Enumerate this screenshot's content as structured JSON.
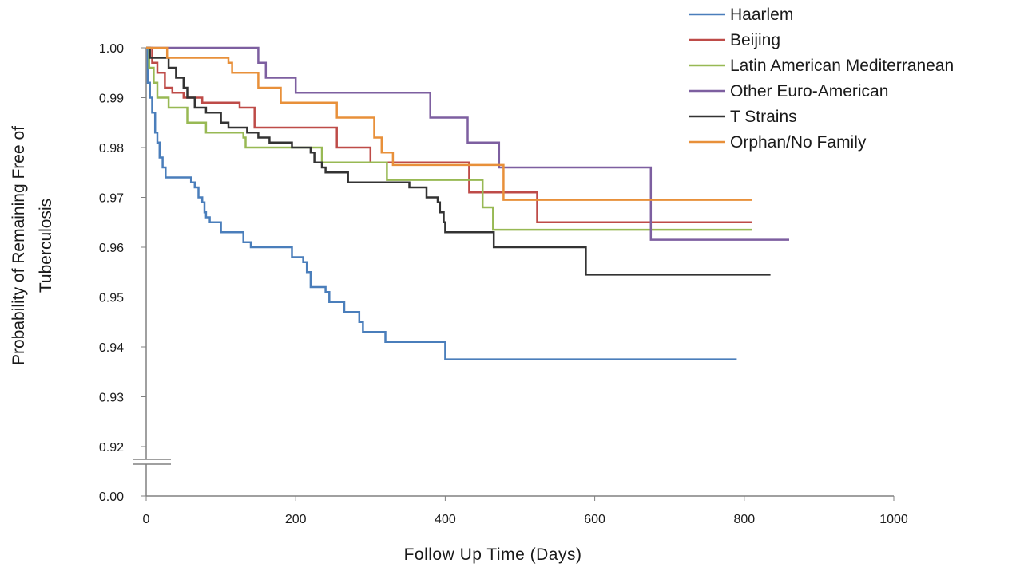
{
  "chart_data": {
    "type": "line",
    "step": true,
    "title": "",
    "xlabel": "Follow Up Time  (Days)",
    "ylabel_lines": [
      "Probability of Remaining Free of",
      "Tuberculosis"
    ],
    "xlim": [
      0,
      1000
    ],
    "ylim_broken": [
      0.92,
      1.0
    ],
    "axis_break_floor": 0.0,
    "x_ticks": [
      0,
      200,
      400,
      600,
      800,
      1000
    ],
    "y_ticks": [
      1.0,
      0.99,
      0.98,
      0.97,
      0.96,
      0.95,
      0.94,
      0.93,
      0.92
    ],
    "y_tick_labels": [
      "1.00",
      "0.99",
      "0.98",
      "0.97",
      "0.96",
      "0.95",
      "0.94",
      "0.93",
      "0.92"
    ],
    "y_floor_label": "0.00",
    "x_tick_labels": [
      "0",
      "200",
      "400",
      "600",
      "800",
      "1000"
    ],
    "grid": false,
    "legend_position": "top-right",
    "series": [
      {
        "name": "Haarlem",
        "color": "#4a7ebb",
        "points": [
          [
            0,
            1.0
          ],
          [
            2,
            0.993
          ],
          [
            5,
            0.99
          ],
          [
            8,
            0.987
          ],
          [
            12,
            0.983
          ],
          [
            15,
            0.981
          ],
          [
            18,
            0.978
          ],
          [
            22,
            0.976
          ],
          [
            26,
            0.974
          ],
          [
            60,
            0.973
          ],
          [
            65,
            0.972
          ],
          [
            70,
            0.97
          ],
          [
            75,
            0.969
          ],
          [
            78,
            0.967
          ],
          [
            80,
            0.966
          ],
          [
            85,
            0.965
          ],
          [
            100,
            0.963
          ],
          [
            130,
            0.961
          ],
          [
            140,
            0.96
          ],
          [
            195,
            0.958
          ],
          [
            210,
            0.957
          ],
          [
            215,
            0.955
          ],
          [
            220,
            0.952
          ],
          [
            240,
            0.951
          ],
          [
            245,
            0.949
          ],
          [
            260,
            0.949
          ],
          [
            265,
            0.947
          ],
          [
            285,
            0.945
          ],
          [
            290,
            0.943
          ],
          [
            320,
            0.941
          ],
          [
            400,
            0.9375
          ],
          [
            790,
            0.9375
          ]
        ]
      },
      {
        "name": "Beijing",
        "color": "#be4b48",
        "points": [
          [
            0,
            1.0
          ],
          [
            8,
            0.997
          ],
          [
            15,
            0.995
          ],
          [
            25,
            0.992
          ],
          [
            35,
            0.991
          ],
          [
            50,
            0.99
          ],
          [
            70,
            0.99
          ],
          [
            75,
            0.989
          ],
          [
            125,
            0.988
          ],
          [
            145,
            0.984
          ],
          [
            255,
            0.98
          ],
          [
            300,
            0.977
          ],
          [
            430,
            0.977
          ],
          [
            432,
            0.971
          ],
          [
            520,
            0.971
          ],
          [
            523,
            0.965
          ],
          [
            810,
            0.965
          ]
        ]
      },
      {
        "name": "Latin American Mediterranean",
        "color": "#98b954",
        "points": [
          [
            0,
            1.0
          ],
          [
            4,
            0.996
          ],
          [
            10,
            0.993
          ],
          [
            15,
            0.99
          ],
          [
            30,
            0.988
          ],
          [
            55,
            0.985
          ],
          [
            80,
            0.983
          ],
          [
            130,
            0.982
          ],
          [
            133,
            0.98
          ],
          [
            230,
            0.98
          ],
          [
            235,
            0.977
          ],
          [
            320,
            0.977
          ],
          [
            322,
            0.9735
          ],
          [
            445,
            0.9735
          ],
          [
            450,
            0.968
          ],
          [
            462,
            0.968
          ],
          [
            464,
            0.9635
          ],
          [
            810,
            0.9635
          ]
        ]
      },
      {
        "name": "Other Euro-American",
        "color": "#7d5fa0",
        "points": [
          [
            0,
            1.0
          ],
          [
            150,
            0.997
          ],
          [
            160,
            0.994
          ],
          [
            200,
            0.991
          ],
          [
            380,
            0.986
          ],
          [
            430,
            0.981
          ],
          [
            472,
            0.976
          ],
          [
            670,
            0.976
          ],
          [
            675,
            0.9615
          ],
          [
            860,
            0.9615
          ]
        ]
      },
      {
        "name": "T Strains",
        "color": "#333333",
        "points": [
          [
            0,
            1.0
          ],
          [
            5,
            0.998
          ],
          [
            30,
            0.996
          ],
          [
            40,
            0.994
          ],
          [
            50,
            0.992
          ],
          [
            55,
            0.99
          ],
          [
            65,
            0.988
          ],
          [
            80,
            0.987
          ],
          [
            100,
            0.985
          ],
          [
            110,
            0.984
          ],
          [
            135,
            0.983
          ],
          [
            150,
            0.982
          ],
          [
            165,
            0.981
          ],
          [
            195,
            0.98
          ],
          [
            220,
            0.979
          ],
          [
            225,
            0.977
          ],
          [
            235,
            0.976
          ],
          [
            240,
            0.975
          ],
          [
            270,
            0.973
          ],
          [
            350,
            0.973
          ],
          [
            352,
            0.972
          ],
          [
            375,
            0.97
          ],
          [
            390,
            0.969
          ],
          [
            393,
            0.967
          ],
          [
            398,
            0.965
          ],
          [
            400,
            0.963
          ],
          [
            462,
            0.963
          ],
          [
            465,
            0.96
          ],
          [
            585,
            0.96
          ],
          [
            588,
            0.9545
          ],
          [
            835,
            0.9545
          ]
        ]
      },
      {
        "name": "Orphan/No Family",
        "color": "#e8903a",
        "points": [
          [
            0,
            1.0
          ],
          [
            28,
            0.998
          ],
          [
            110,
            0.997
          ],
          [
            115,
            0.995
          ],
          [
            150,
            0.992
          ],
          [
            180,
            0.989
          ],
          [
            255,
            0.986
          ],
          [
            305,
            0.982
          ],
          [
            315,
            0.979
          ],
          [
            330,
            0.9765
          ],
          [
            475,
            0.9765
          ],
          [
            478,
            0.9695
          ],
          [
            810,
            0.9695
          ]
        ]
      }
    ]
  }
}
